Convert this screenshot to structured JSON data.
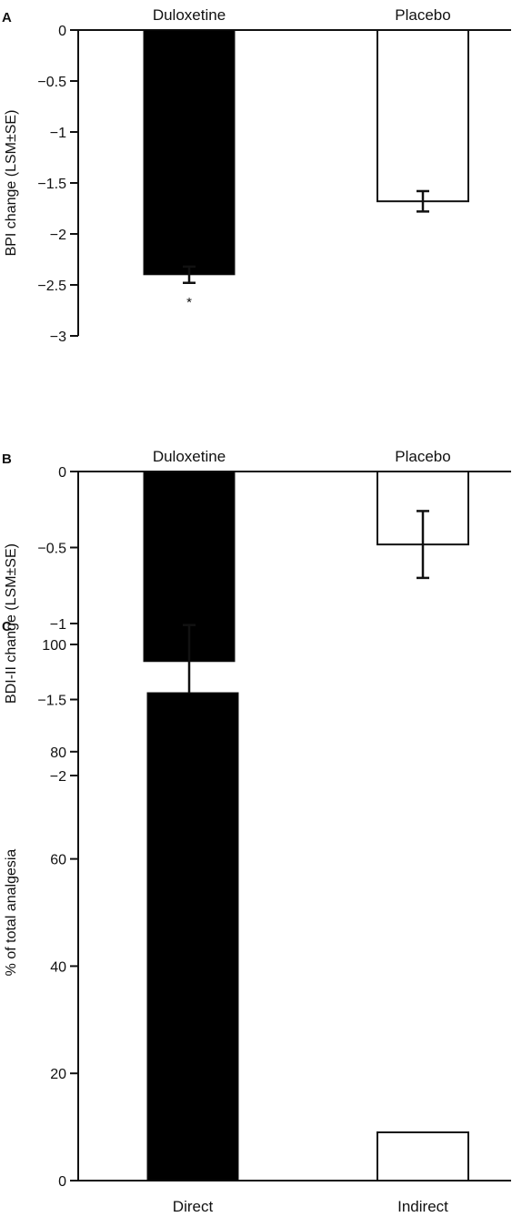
{
  "chart_data": [
    {
      "panel": "A",
      "type": "bar",
      "categories": [
        "Duloxetine",
        "Placebo"
      ],
      "values": [
        -2.4,
        -1.68
      ],
      "errors": [
        0.08,
        0.1
      ],
      "significance": [
        "*",
        ""
      ],
      "ylabel": "BPI change (LSM±SE)",
      "ylim": [
        -3,
        0
      ],
      "yticks": [
        "0",
        "−0.5",
        "−1",
        "−1.5",
        "−2",
        "−2.5",
        "−3"
      ],
      "category_labels_position": "top",
      "colors": [
        "#000000",
        "#ffffff"
      ]
    },
    {
      "panel": "B",
      "type": "bar",
      "categories": [
        "Duloxetine",
        "Placebo"
      ],
      "values": [
        -1.25,
        -0.48
      ],
      "errors": [
        0.24,
        0.22
      ],
      "significance": [
        "*",
        ""
      ],
      "ylabel": "BDI-II change (LSM±SE)",
      "ylim": [
        -2,
        0
      ],
      "yticks": [
        "0",
        "−0.5",
        "−1",
        "−1.5",
        "−2"
      ],
      "category_labels_position": "top",
      "colors": [
        "#000000",
        "#ffffff"
      ]
    },
    {
      "panel": "C",
      "type": "bar",
      "categories": [
        "Direct",
        "Indirect"
      ],
      "values": [
        91,
        9
      ],
      "ylabel": "% of total analgesia",
      "ylim": [
        0,
        100
      ],
      "yticks": [
        "0",
        "20",
        "40",
        "60",
        "80",
        "100"
      ],
      "category_labels_position": "bottom",
      "colors": [
        "#000000",
        "#ffffff"
      ]
    }
  ]
}
